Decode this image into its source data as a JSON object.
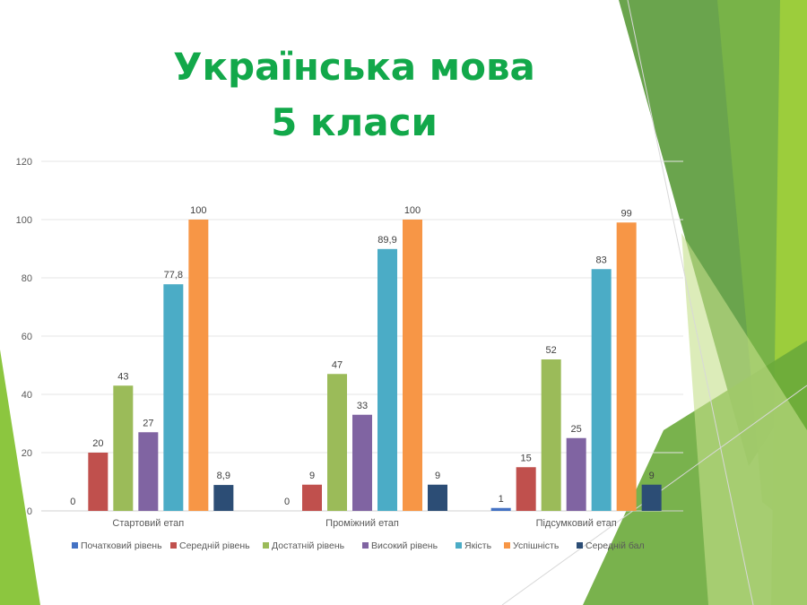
{
  "title_line1": "Українська мова",
  "title_line2": "5 класи",
  "chart_data": {
    "type": "bar",
    "title": "Українська мова 5 класи",
    "categories": [
      "Стартовий етап",
      "Проміжний етап",
      "Підсумковий етап"
    ],
    "series": [
      {
        "name": "Початковий рівень",
        "color": "#4472c4",
        "values": [
          0,
          0,
          1
        ],
        "labels": [
          "0",
          "0",
          "1"
        ]
      },
      {
        "name": "Середній рівень",
        "color": "#c0504d",
        "values": [
          20,
          9,
          15
        ],
        "labels": [
          "20",
          "9",
          "15"
        ]
      },
      {
        "name": "Достатній рівень",
        "color": "#9bbb59",
        "values": [
          43,
          47,
          52
        ],
        "labels": [
          "43",
          "47",
          "52"
        ]
      },
      {
        "name": "Високий рівень",
        "color": "#8064a2",
        "values": [
          27,
          33,
          25
        ],
        "labels": [
          "27",
          "33",
          "25"
        ]
      },
      {
        "name": "Якість",
        "color": "#4bacc6",
        "values": [
          77.8,
          89.9,
          83
        ],
        "labels": [
          "77,8",
          "89,9",
          "83"
        ]
      },
      {
        "name": "Успішність",
        "color": "#f79646",
        "values": [
          100,
          100,
          99
        ],
        "labels": [
          "100",
          "100",
          "99"
        ]
      },
      {
        "name": "Середній бал",
        "color": "#2c4d75",
        "values": [
          8.9,
          9,
          9
        ],
        "labels": [
          "8,9",
          "9",
          "9"
        ]
      }
    ],
    "yticks": [
      "0",
      "20",
      "40",
      "60",
      "80",
      "100",
      "120"
    ],
    "ylim": [
      0,
      120
    ],
    "xlabel": "",
    "ylabel": "",
    "grid": true,
    "legend": "bottom"
  }
}
